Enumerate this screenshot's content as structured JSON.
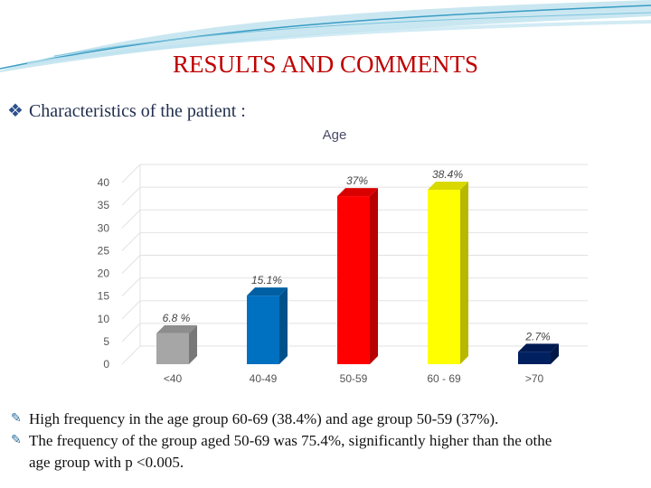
{
  "slide": {
    "title": "RESULTS AND COMMENTS",
    "heading": "Characteristics of the patient :",
    "heading_icon": "diamond-bullet-icon",
    "notes": [
      "High frequency in the age group 60-69 (38.4%) and age group 50-59 (37%).",
      "The frequency of the group aged 50-69 was 75.4%, significantly higher than the othe",
      "age group with p <0.005."
    ]
  },
  "colors": {
    "title": "#c00000",
    "bars": [
      "#a6a6a6",
      "#0070c0",
      "#ff0000",
      "#ffff00",
      "#002060"
    ]
  },
  "chart_data": {
    "type": "bar",
    "title": "Age",
    "categories": [
      "<40",
      "40-49",
      "50-59",
      "60 - 69",
      ">70"
    ],
    "values": [
      6.8,
      15.1,
      37,
      38.4,
      2.7
    ],
    "data_labels": [
      "6.8 %",
      "15.1%",
      "37%",
      "38.4%",
      "2.7%"
    ],
    "yticks": [
      0,
      5,
      10,
      15,
      20,
      25,
      30,
      35,
      40
    ],
    "ylim": [
      0,
      40
    ],
    "grid": true,
    "style": "3d-column"
  }
}
